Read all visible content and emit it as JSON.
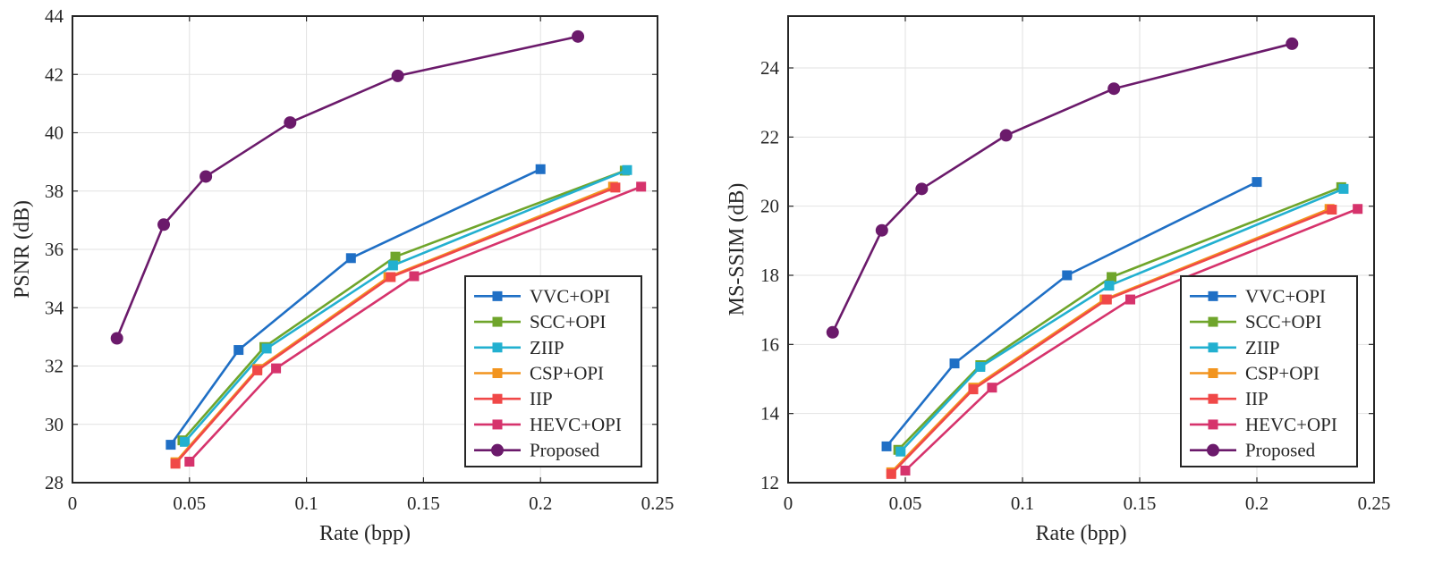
{
  "chart_data": [
    {
      "type": "line",
      "title": "",
      "xlabel": "Rate (bpp)",
      "ylabel": "PSNR (dB)",
      "xlim": [
        0,
        0.25
      ],
      "ylim": [
        28,
        44
      ],
      "xticks": [
        0,
        0.05,
        0.1,
        0.15,
        0.2,
        0.25
      ],
      "xtick_labels": [
        "0",
        "0.05",
        "0.1",
        "0.15",
        "0.2",
        "0.25"
      ],
      "yticks": [
        28,
        30,
        32,
        34,
        36,
        38,
        40,
        42,
        44
      ],
      "ytick_labels": [
        "28",
        "30",
        "32",
        "34",
        "36",
        "38",
        "40",
        "42",
        "44"
      ],
      "grid": true,
      "legend_position": "bottom-right",
      "series": [
        {
          "name": "VVC+OPI",
          "color": "#1f6fc5",
          "marker": "square",
          "x": [
            0.042,
            0.071,
            0.119,
            0.2
          ],
          "y": [
            29.3,
            32.55,
            35.7,
            38.75
          ]
        },
        {
          "name": "SCC+OPI",
          "color": "#6fa52b",
          "marker": "square",
          "x": [
            0.047,
            0.082,
            0.138,
            0.236
          ],
          "y": [
            29.45,
            32.65,
            35.75,
            38.7
          ]
        },
        {
          "name": "ZIIP",
          "color": "#22b0d0",
          "marker": "square",
          "x": [
            0.048,
            0.083,
            0.137,
            0.237
          ],
          "y": [
            29.4,
            32.6,
            35.45,
            38.72
          ]
        },
        {
          "name": "CSP+OPI",
          "color": "#f2941e",
          "marker": "square",
          "x": [
            0.044,
            0.079,
            0.135,
            0.231
          ],
          "y": [
            28.7,
            31.9,
            35.05,
            38.15
          ]
        },
        {
          "name": "IIP",
          "color": "#f04848",
          "marker": "square",
          "x": [
            0.044,
            0.079,
            0.136,
            0.232
          ],
          "y": [
            28.65,
            31.85,
            35.05,
            38.12
          ]
        },
        {
          "name": "HEVC+OPI",
          "color": "#d6336c",
          "marker": "square",
          "x": [
            0.05,
            0.087,
            0.146,
            0.243
          ],
          "y": [
            28.72,
            31.92,
            35.08,
            38.15
          ]
        },
        {
          "name": "Proposed",
          "color": "#6b1a6b",
          "marker": "circle",
          "x": [
            0.019,
            0.039,
            0.057,
            0.093,
            0.139,
            0.216
          ],
          "y": [
            32.95,
            36.85,
            38.5,
            40.35,
            41.95,
            43.3
          ]
        }
      ]
    },
    {
      "type": "line",
      "title": "",
      "xlabel": "Rate (bpp)",
      "ylabel": "MS-SSIM (dB)",
      "xlim": [
        0,
        0.25
      ],
      "ylim": [
        12,
        25.5
      ],
      "xticks": [
        0,
        0.05,
        0.1,
        0.15,
        0.2,
        0.25
      ],
      "xtick_labels": [
        "0",
        "0.05",
        "0.1",
        "0.15",
        "0.2",
        "0.25"
      ],
      "yticks": [
        12,
        14,
        16,
        18,
        20,
        22,
        24
      ],
      "ytick_labels": [
        "12",
        "14",
        "16",
        "18",
        "20",
        "22",
        "24"
      ],
      "grid": true,
      "legend_position": "bottom-right",
      "series": [
        {
          "name": "VVC+OPI",
          "color": "#1f6fc5",
          "marker": "square",
          "x": [
            0.042,
            0.071,
            0.119,
            0.2
          ],
          "y": [
            13.05,
            15.45,
            18.0,
            20.7
          ]
        },
        {
          "name": "SCC+OPI",
          "color": "#6fa52b",
          "marker": "square",
          "x": [
            0.047,
            0.082,
            0.138,
            0.236
          ],
          "y": [
            12.95,
            15.4,
            17.95,
            20.55
          ]
        },
        {
          "name": "ZIIP",
          "color": "#22b0d0",
          "marker": "square",
          "x": [
            0.048,
            0.082,
            0.137,
            0.237
          ],
          "y": [
            12.9,
            15.35,
            17.7,
            20.5
          ]
        },
        {
          "name": "CSP+OPI",
          "color": "#f2941e",
          "marker": "square",
          "x": [
            0.044,
            0.079,
            0.135,
            0.231
          ],
          "y": [
            12.3,
            14.75,
            17.3,
            19.92
          ]
        },
        {
          "name": "IIP",
          "color": "#f04848",
          "marker": "square",
          "x": [
            0.044,
            0.079,
            0.136,
            0.232
          ],
          "y": [
            12.25,
            14.7,
            17.3,
            19.9
          ]
        },
        {
          "name": "HEVC+OPI",
          "color": "#d6336c",
          "marker": "square",
          "x": [
            0.05,
            0.087,
            0.146,
            0.243
          ],
          "y": [
            12.35,
            14.75,
            17.3,
            19.92
          ]
        },
        {
          "name": "Proposed",
          "color": "#6b1a6b",
          "marker": "circle",
          "x": [
            0.019,
            0.04,
            0.057,
            0.093,
            0.139,
            0.215
          ],
          "y": [
            16.35,
            19.3,
            20.5,
            22.05,
            23.4,
            24.7
          ]
        }
      ]
    }
  ]
}
